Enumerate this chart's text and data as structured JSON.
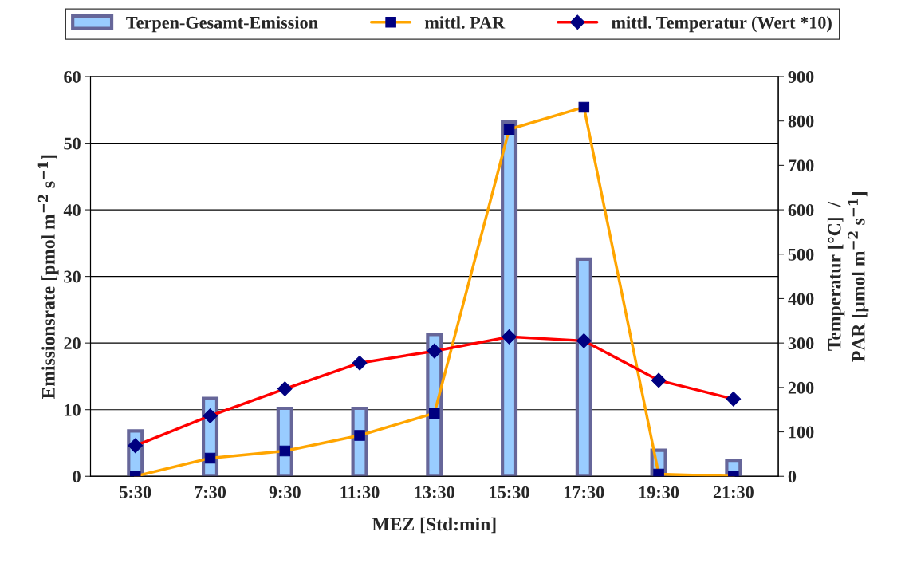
{
  "chart_data": {
    "type": "bar",
    "categories": [
      "5:30",
      "7:30",
      "9:30",
      "11:30",
      "13:30",
      "15:30",
      "17:30",
      "19:30",
      "21:30"
    ],
    "xlabel": "MEZ [Std:min]",
    "ylabel": "Emissionsrate [pmol m$^{−2}$ s$^{−1}$]",
    "y2label": "Temperatur [°C]  /\nPAR [µmol m$^{−2}$ s$^{−1}$]",
    "series": [
      {
        "name": "Terpen-Gesamt-Emission",
        "color": "#99ccff",
        "values": [
          6.8,
          11.7,
          10.2,
          10.2,
          21.3,
          53.2,
          32.6,
          3.9,
          2.4
        ]
      },
      {
        "name": "mittl. PAR",
        "type": "line",
        "axis": "y2",
        "color": "#ffa500",
        "marker": "square",
        "values": [
          0,
          41,
          57,
          92,
          142,
          781,
          831,
          5,
          0
        ]
      },
      {
        "name": "mittl. Temperatur (Wert *10)",
        "type": "line",
        "axis": "y2",
        "color": "#ff0000",
        "marker": "diamond",
        "values": [
          69,
          136,
          197,
          255,
          282,
          314,
          305,
          216,
          174
        ]
      }
    ],
    "ylim": [
      0,
      60
    ],
    "yticks": [
      0,
      10,
      20,
      30,
      40,
      50,
      60
    ],
    "y2lim": [
      0,
      900
    ],
    "y2ticks": [
      0,
      100,
      200,
      300,
      400,
      500,
      600,
      700,
      800,
      900
    ],
    "grid": "y",
    "legend": "top"
  }
}
